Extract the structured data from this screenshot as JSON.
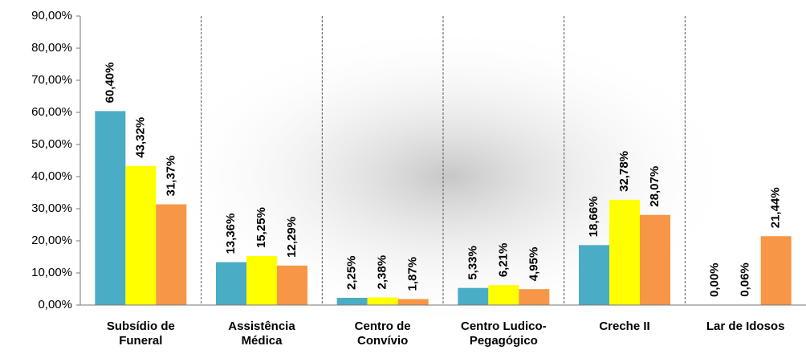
{
  "chart_data": {
    "type": "bar",
    "categories": [
      "Subsídio de Funeral",
      "Assistência Médica",
      "Centro de Convívio",
      "Centro Ludico-Pegagógico",
      "Creche II",
      "Lar de Idosos"
    ],
    "series": [
      {
        "color": "#4bacc6",
        "values": [
          60.4,
          13.36,
          2.25,
          5.33,
          18.66,
          0.0
        ],
        "value_labels": [
          "60,40%",
          "13,36%",
          "2,25%",
          "5,33%",
          "18,66%",
          "0,00%"
        ]
      },
      {
        "color": "#ffff00",
        "values": [
          43.32,
          15.25,
          2.38,
          6.21,
          32.78,
          0.06
        ],
        "value_labels": [
          "43,32%",
          "15,25%",
          "2,38%",
          "6,21%",
          "32,78%",
          "0,06%"
        ]
      },
      {
        "color": "#f79646",
        "values": [
          31.37,
          12.29,
          1.87,
          4.95,
          28.07,
          21.44
        ],
        "value_labels": [
          "31,37%",
          "12,29%",
          "1,87%",
          "4,95%",
          "28,07%",
          "21,44%"
        ]
      }
    ],
    "ylim": [
      0,
      90
    ],
    "yticks": [
      {
        "value": 0,
        "label": "0,00%"
      },
      {
        "value": 10,
        "label": "10,00%"
      },
      {
        "value": 20,
        "label": "20,00%"
      },
      {
        "value": 30,
        "label": "30,00%"
      },
      {
        "value": 40,
        "label": "40,00%"
      },
      {
        "value": 50,
        "label": "50,00%"
      },
      {
        "value": 60,
        "label": "60,00%"
      },
      {
        "value": 70,
        "label": "70,00%"
      },
      {
        "value": 80,
        "label": "80,00%"
      },
      {
        "value": 90,
        "label": "90,00%"
      }
    ],
    "category_separators": true
  }
}
